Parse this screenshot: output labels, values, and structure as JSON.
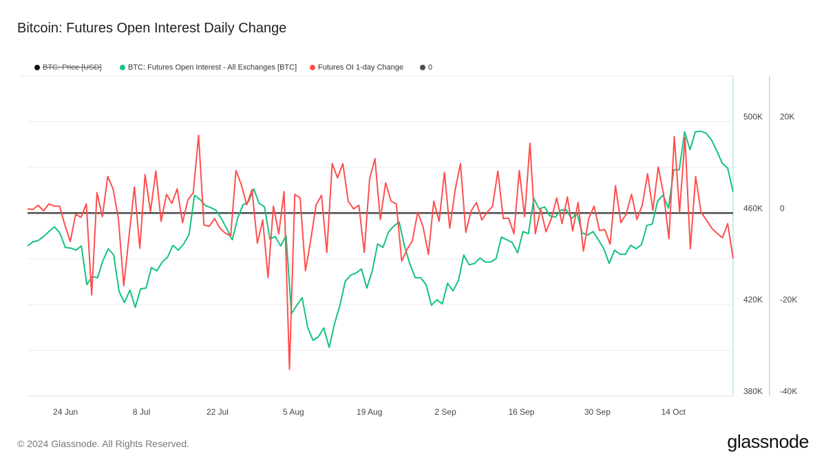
{
  "title": "Bitcoin: Futures Open Interest Daily Change",
  "footer": "© 2024 Glassnode. All Rights Reserved.",
  "logo": "glassnode",
  "colors": {
    "price": "#111111",
    "oi": "#13c27c",
    "change": "#ff4d4d",
    "zero": "#4d4d4d"
  },
  "chart_data": {
    "type": "line",
    "title": "Bitcoin: Futures Open Interest Daily Change",
    "x_range": [
      "2024-06-17",
      "2024-10-25"
    ],
    "xticks": [
      "24 Jun",
      "8 Jul",
      "22 Jul",
      "5 Aug",
      "19 Aug",
      "2 Sep",
      "16 Sep",
      "30 Sep",
      "14 Oct"
    ],
    "xtick_days": [
      7,
      21,
      35,
      49,
      63,
      77,
      91,
      105,
      119
    ],
    "y_left": {
      "range": [
        380,
        520
      ],
      "unit": "K",
      "ticks": [
        380,
        420,
        460,
        500
      ],
      "tick_labels": [
        "380K",
        "420K",
        "460K",
        "500K"
      ]
    },
    "y_right": {
      "range": [
        -40,
        30
      ],
      "unit": "K",
      "ticks": [
        -40,
        -20,
        0,
        20
      ],
      "tick_labels": [
        "-40K",
        "-20K",
        "0",
        "20K"
      ]
    },
    "grid": true,
    "legend": [
      {
        "label": "BTC: Price [USD]",
        "disabled": true
      },
      {
        "label": "BTC: Futures Open Interest - All Exchanges [BTC]"
      },
      {
        "label": "Futures OI 1-day Change"
      },
      {
        "label": "0"
      }
    ],
    "series": [
      {
        "name": "BTC: Futures Open Interest - All Exchanges [BTC]",
        "axis": "left",
        "unit": "K BTC",
        "values": [
          445.6,
          447.4,
          448.0,
          449.8,
          452,
          454.0,
          451.3,
          445.0,
          444.7,
          443.8,
          445.6,
          428.7,
          432.3,
          431.7,
          439.2,
          444.4,
          441.7,
          425.7,
          420.9,
          426.3,
          418.8,
          426.9,
          427.2,
          436.2,
          434.7,
          438.6,
          440.7,
          445.9,
          443.8,
          446.5,
          450.7,
          467.8,
          466.0,
          463.3,
          462.4,
          461.2,
          457.6,
          453.1,
          448.3,
          457.6,
          463.6,
          464.8,
          470.5,
          464.2,
          462.7,
          448.6,
          449.8,
          445.6,
          450.1,
          416.1,
          419.7,
          423.0,
          410.1,
          404.4,
          405.9,
          409.8,
          401.3,
          411.6,
          419.7,
          430.2,
          432.9,
          433.8,
          435.6,
          427.2,
          434.7,
          446.5,
          445.0,
          451.6,
          454.3,
          456.1,
          445.6,
          437.7,
          431.7,
          431.7,
          428.7,
          419.7,
          422.1,
          420.3,
          429.3,
          426.0,
          430.5,
          441.7,
          437.4,
          438.0,
          440.4,
          438.6,
          438.6,
          440.1,
          449.5,
          448.3,
          447.1,
          442.6,
          451.9,
          451.0,
          466.3,
          461.8,
          462.7,
          458.8,
          458.2,
          461.2,
          461.5,
          457.6,
          460.0,
          451.3,
          450.4,
          451.9,
          448.3,
          444.4,
          438.0,
          443.8,
          442.0,
          442.0,
          445.9,
          444.4,
          446.2,
          454.6,
          455.2,
          465.4,
          467.8,
          462.1,
          478.9,
          478.9,
          495.5,
          487.7,
          495.5,
          495.8,
          494.9,
          491.9,
          487.1,
          481.7,
          479.6,
          469.3
        ]
      },
      {
        "name": "Futures OI 1-day Change",
        "axis": "right",
        "unit": "K BTC",
        "values": [
          0.9,
          0.8,
          1.7,
          0.5,
          2.0,
          1.5,
          1.5,
          -2.7,
          -6.2,
          -0.3,
          -0.9,
          2.0,
          -17.9,
          4.5,
          -0.8,
          8.0,
          5.3,
          -1.2,
          -15.9,
          -5.0,
          5.7,
          -7.7,
          8.4,
          0.3,
          9.2,
          -1.8,
          4.1,
          2.1,
          5.3,
          -2.1,
          2.9,
          4.4,
          17.0,
          -2.6,
          -2.9,
          -1.2,
          -3.3,
          -4.4,
          -5.0,
          9.3,
          6.2,
          1.8,
          5.1,
          -6.6,
          -1.5,
          -14.1,
          1.5,
          -4.5,
          4.7,
          -34.1,
          4.1,
          3.3,
          -12.6,
          -5.7,
          1.8,
          3.9,
          -8.6,
          10.8,
          7.7,
          10.8,
          2.6,
          0.9,
          1.7,
          -8.6,
          7.5,
          11.9,
          -1.4,
          6.6,
          2.6,
          2.0,
          -10.5,
          -8.0,
          -6.0,
          0.2,
          -3.0,
          -9.0,
          2.6,
          -1.8,
          8.9,
          -3.3,
          5.0,
          10.8,
          -4.2,
          0.5,
          2.3,
          -1.5,
          0.2,
          1.5,
          9.2,
          -1.2,
          -1.1,
          -4.5,
          9.3,
          -0.8,
          15.3,
          -4.5,
          0.9,
          -4.1,
          -1.2,
          3.3,
          -2.3,
          3.5,
          -3.9,
          2.3,
          -8.3,
          -1.2,
          1.5,
          -3.8,
          -3.6,
          -6.8,
          6.0,
          -2.1,
          -0.2,
          4.1,
          -1.4,
          1.7,
          8.6,
          0.6,
          10.1,
          4.1,
          -5.6,
          16.7,
          0.2,
          16.5,
          -7.8,
          8.0,
          0.2,
          -1.5,
          -3.3,
          -4.4,
          -5.4,
          -2.3,
          -9.9
        ]
      },
      {
        "name": "0",
        "axis": "right",
        "values": [
          0,
          0
        ]
      }
    ]
  }
}
